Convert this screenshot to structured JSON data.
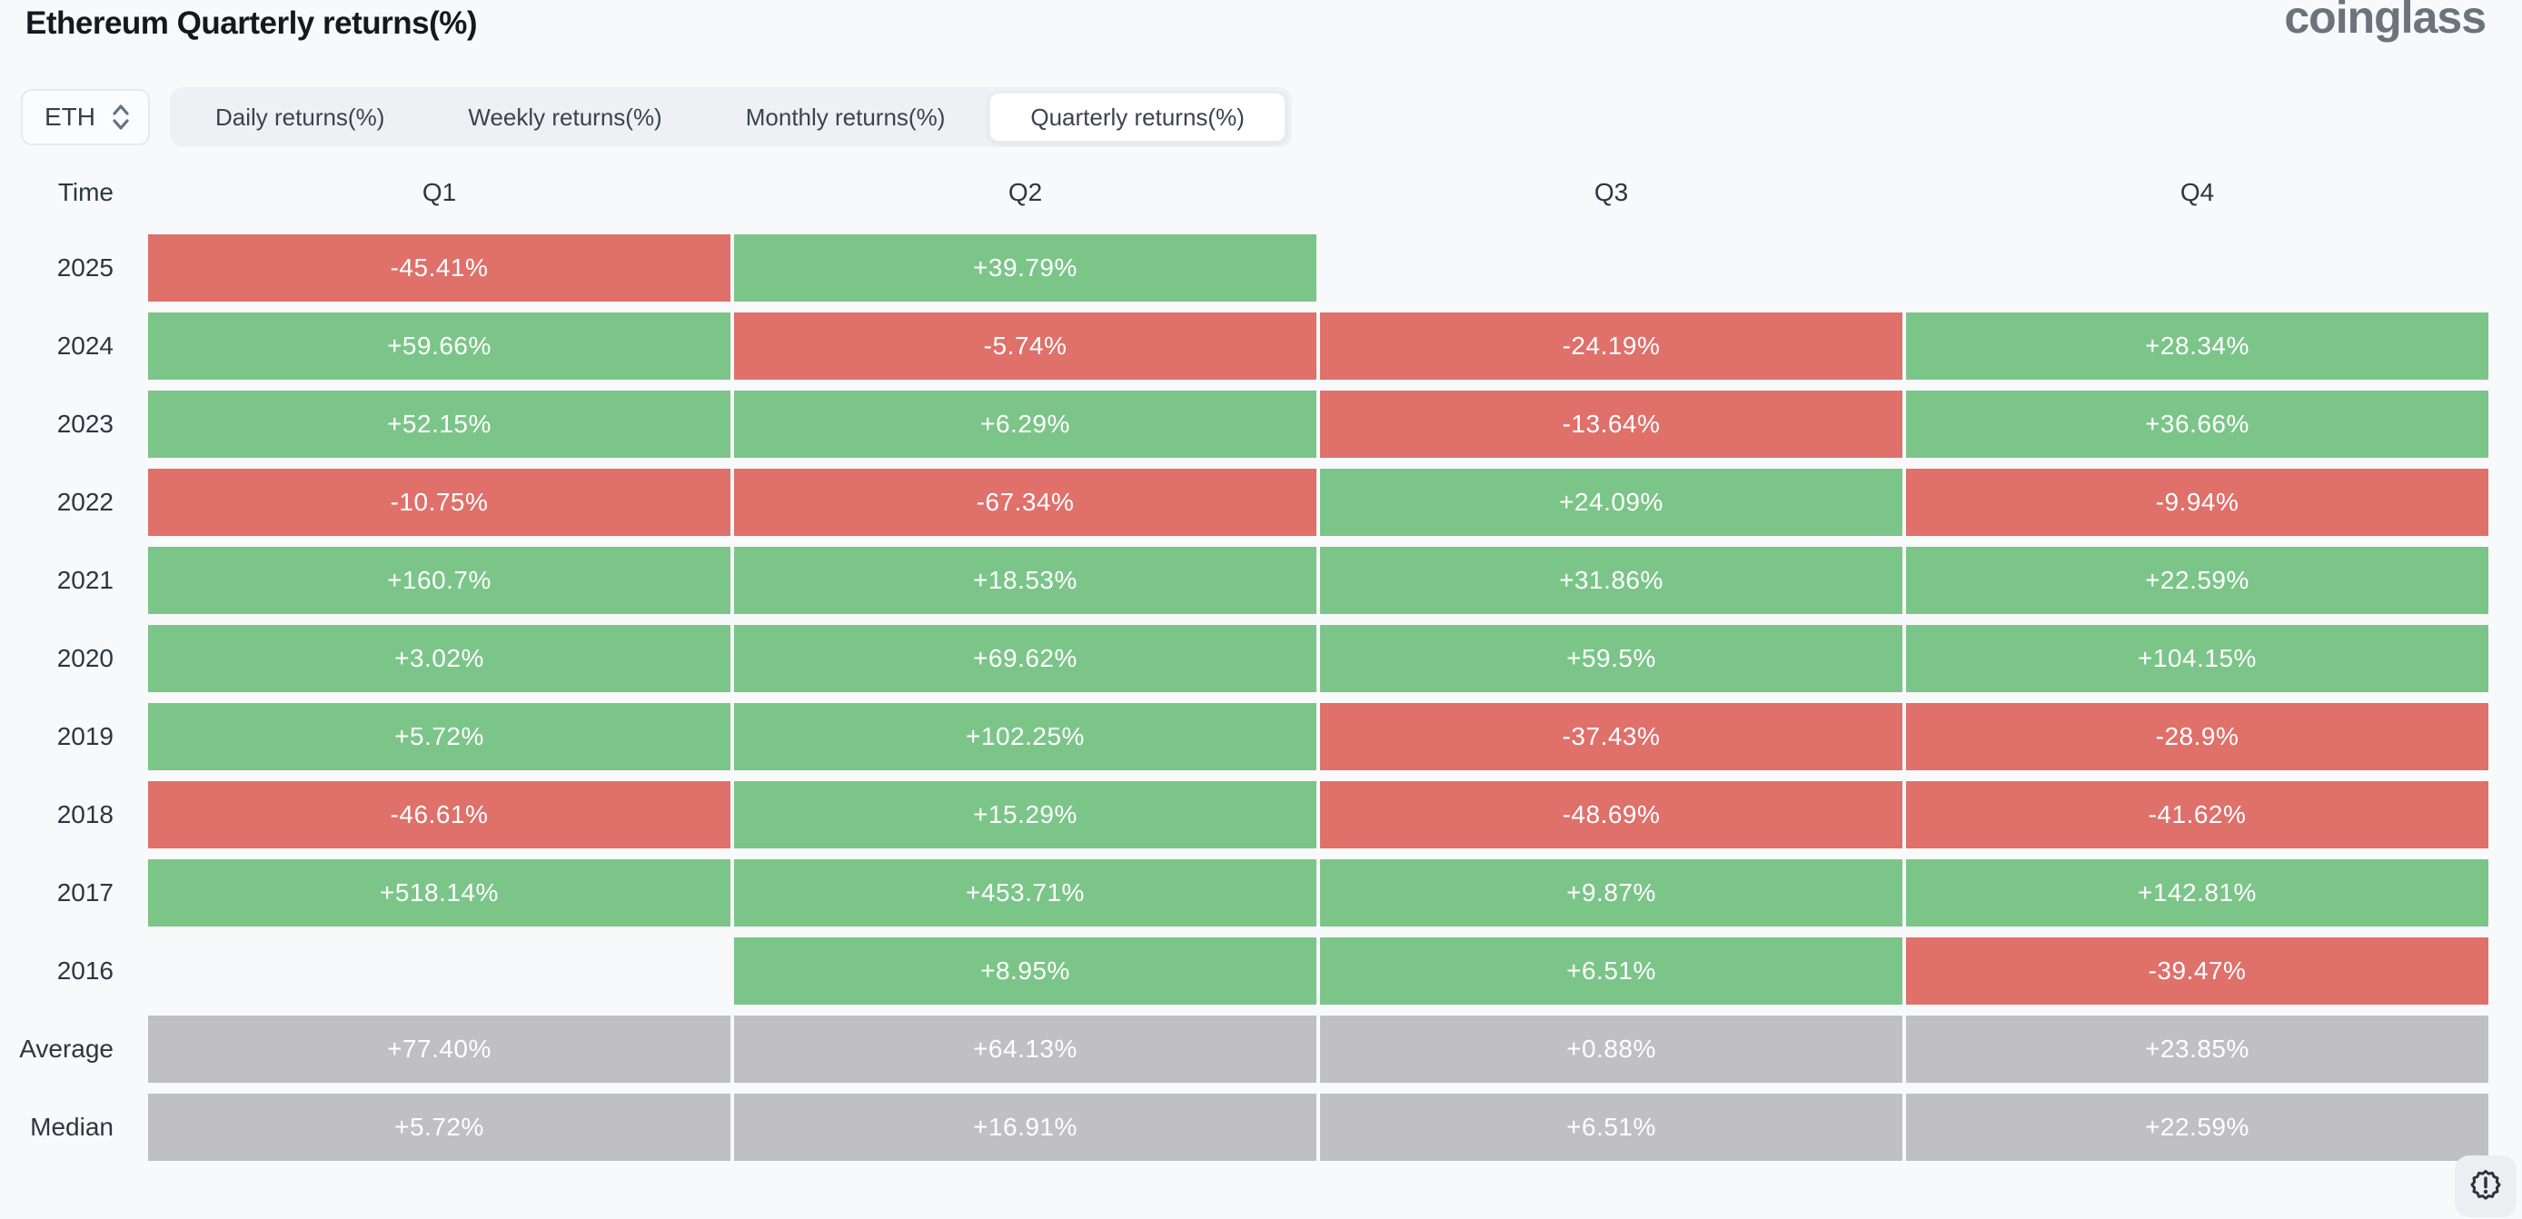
{
  "header": {
    "title": "Ethereum Quarterly returns(%)",
    "logo_text": "coinglass"
  },
  "controls": {
    "symbol_select": {
      "value": "ETH",
      "icon": "up-down-chevron-icon"
    },
    "tabs": [
      {
        "label": "Daily returns(%)",
        "active": false
      },
      {
        "label": "Weekly returns(%)",
        "active": false
      },
      {
        "label": "Monthly returns(%)",
        "active": false
      },
      {
        "label": "Quarterly returns(%)",
        "active": true
      }
    ]
  },
  "table": {
    "columns": [
      "Time",
      "Q1",
      "Q2",
      "Q3",
      "Q4"
    ],
    "rows": [
      {
        "label": "2025",
        "summary": false,
        "values": [
          "-45.41%",
          "+39.79%",
          null,
          null
        ]
      },
      {
        "label": "2024",
        "summary": false,
        "values": [
          "+59.66%",
          "-5.74%",
          "-24.19%",
          "+28.34%"
        ]
      },
      {
        "label": "2023",
        "summary": false,
        "values": [
          "+52.15%",
          "+6.29%",
          "-13.64%",
          "+36.66%"
        ]
      },
      {
        "label": "2022",
        "summary": false,
        "values": [
          "-10.75%",
          "-67.34%",
          "+24.09%",
          "-9.94%"
        ]
      },
      {
        "label": "2021",
        "summary": false,
        "values": [
          "+160.7%",
          "+18.53%",
          "+31.86%",
          "+22.59%"
        ]
      },
      {
        "label": "2020",
        "summary": false,
        "values": [
          "+3.02%",
          "+69.62%",
          "+59.5%",
          "+104.15%"
        ]
      },
      {
        "label": "2019",
        "summary": false,
        "values": [
          "+5.72%",
          "+102.25%",
          "-37.43%",
          "-28.9%"
        ]
      },
      {
        "label": "2018",
        "summary": false,
        "values": [
          "-46.61%",
          "+15.29%",
          "-48.69%",
          "-41.62%"
        ]
      },
      {
        "label": "2017",
        "summary": false,
        "values": [
          "+518.14%",
          "+453.71%",
          "+9.87%",
          "+142.81%"
        ]
      },
      {
        "label": "2016",
        "summary": false,
        "values": [
          null,
          "+8.95%",
          "+6.51%",
          "-39.47%"
        ]
      },
      {
        "label": "Average",
        "summary": true,
        "values": [
          "+77.40%",
          "+64.13%",
          "+0.88%",
          "+23.85%"
        ]
      },
      {
        "label": "Median",
        "summary": true,
        "values": [
          "+5.72%",
          "+16.91%",
          "+6.51%",
          "+22.59%"
        ]
      }
    ]
  },
  "colors": {
    "positive": "#7cc589",
    "negative": "#df706a",
    "summary": "#c0c0c2",
    "page_background": "#f8f9fa",
    "accent_text": "#2f3540"
  },
  "footer": {
    "alert_button_icon": "badge-exclamation-icon"
  }
}
